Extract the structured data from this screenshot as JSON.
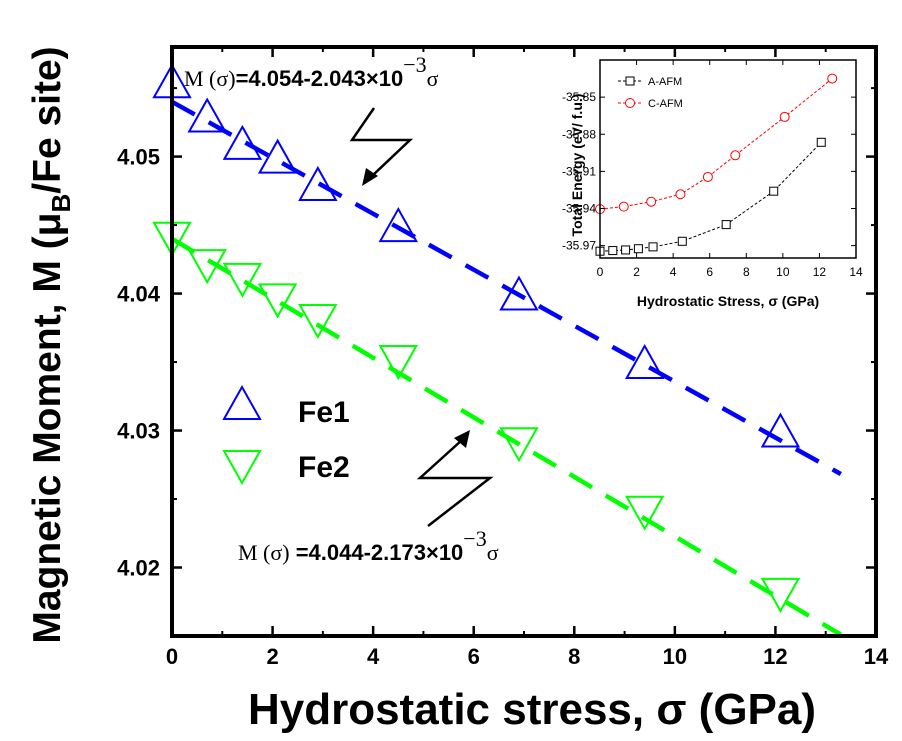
{
  "chart_data": [
    {
      "type": "line",
      "xlabel": "Hydrostatic stress, σ (GPa)",
      "ylabel_pre": "Magnetic Moment, M (μ",
      "ylabel_sub": "B",
      "ylabel_post": "/Fe site)",
      "xlim": [
        0,
        14
      ],
      "ylim": [
        4.015,
        4.058
      ],
      "xticks": [
        "0",
        "2",
        "4",
        "6",
        "8",
        "10",
        "12",
        "14"
      ],
      "yticks": [
        "4.02",
        "4.03",
        "4.04",
        "4.05"
      ],
      "series": [
        {
          "name": "Fe1",
          "color": "#0000ff",
          "marker": "triangle-up",
          "x": [
            0.0,
            0.7,
            1.4,
            2.1,
            2.9,
            4.5,
            6.9,
            9.4,
            12.1
          ],
          "y": [
            4.0555,
            4.053,
            4.051,
            4.05,
            4.048,
            4.045,
            4.04,
            4.035,
            4.03
          ],
          "fit": {
            "intercept": 4.054,
            "slope": -0.002043,
            "x_end": 13.3
          },
          "equation": {
            "lhs": "M (σ)",
            "rhs": "=4.054-2.043×10",
            "exp": "−3",
            "var": "σ"
          }
        },
        {
          "name": "Fe2",
          "color": "#00ff00",
          "marker": "triangle-down",
          "x": [
            0.0,
            0.7,
            1.4,
            2.1,
            2.9,
            4.5,
            6.9,
            9.4,
            12.1
          ],
          "y": [
            4.044,
            4.042,
            4.041,
            4.0395,
            4.038,
            4.035,
            4.029,
            4.024,
            4.018
          ],
          "fit": {
            "intercept": 4.044,
            "slope": -0.002173,
            "x_end": 13.3
          },
          "equation": {
            "lhs": "M (σ)",
            "rhs": " =4.044-2.173×10",
            "exp": "−3",
            "var": "σ"
          }
        }
      ]
    },
    {
      "type": "line",
      "xlabel": "Hydrostatic Stress, σ (GPa)",
      "ylabel": "Total Energy  (eV/ f.u.)",
      "xlim": [
        0,
        14
      ],
      "ylim": [
        -35.98,
        -35.82
      ],
      "xticks": [
        "0",
        "2",
        "4",
        "6",
        "8",
        "10",
        "12",
        "14"
      ],
      "yticks": [
        "-35.97",
        "-35.94",
        "-35.91",
        "-35.88",
        "-35.85"
      ],
      "series": [
        {
          "name": "A-AFM",
          "color": "#000000",
          "marker": "square",
          "x": [
            0.0,
            0.7,
            1.4,
            2.1,
            2.9,
            4.5,
            6.9,
            9.5,
            12.1
          ],
          "y": [
            -35.9745,
            -35.974,
            -35.9735,
            -35.9725,
            -35.971,
            -35.9665,
            -35.953,
            -35.926,
            -35.8865
          ]
        },
        {
          "name": "C-AFM",
          "color": "#ff0000",
          "marker": "circle",
          "x": [
            0.0,
            1.3,
            2.8,
            4.4,
            5.9,
            7.4,
            10.1,
            12.7
          ],
          "y": [
            -35.9405,
            -35.9385,
            -35.9345,
            -35.9285,
            -35.9145,
            -35.897,
            -35.866,
            -35.835
          ]
        }
      ]
    }
  ]
}
